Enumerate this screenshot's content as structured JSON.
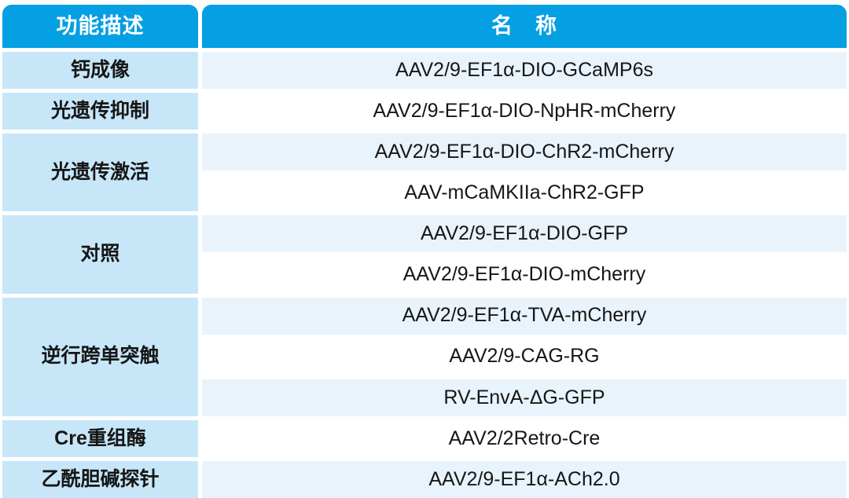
{
  "table": {
    "columns": [
      {
        "label": "功能描述"
      },
      {
        "label": "名　称"
      }
    ],
    "groups": [
      {
        "function": "钙成像",
        "names": [
          "AAV2/9-EF1α-DIO-GCaMP6s"
        ]
      },
      {
        "function": "光遗传抑制",
        "names": [
          "AAV2/9-EF1α-DIO-NpHR-mCherry"
        ]
      },
      {
        "function": "光遗传激活",
        "names": [
          "AAV2/9-EF1α-DIO-ChR2-mCherry",
          "AAV-mCaMKIIa-ChR2-GFP"
        ]
      },
      {
        "function": "对照",
        "names": [
          "AAV2/9-EF1α-DIO-GFP",
          "AAV2/9-EF1α-DIO-mCherry"
        ]
      },
      {
        "function": "逆行跨单突触",
        "names": [
          "AAV2/9-EF1α-TVA-mCherry",
          "AAV2/9-CAG-RG",
          "RV-EnvA-ΔG-GFP"
        ]
      },
      {
        "function": "Cre重组酶",
        "names": [
          "AAV2/2Retro-Cre"
        ]
      },
      {
        "function": "乙酰胆碱探针",
        "names": [
          "AAV2/9-EF1α-ACh2.0"
        ]
      }
    ],
    "colors": {
      "header_bg": "#059fe3",
      "header_text": "#ffffff",
      "function_bg": "#c7e7f9",
      "name_bg_light": "#e9f3fb",
      "name_bg_white": "#ffffff",
      "text": "#161616",
      "gap": "#ffffff"
    }
  }
}
